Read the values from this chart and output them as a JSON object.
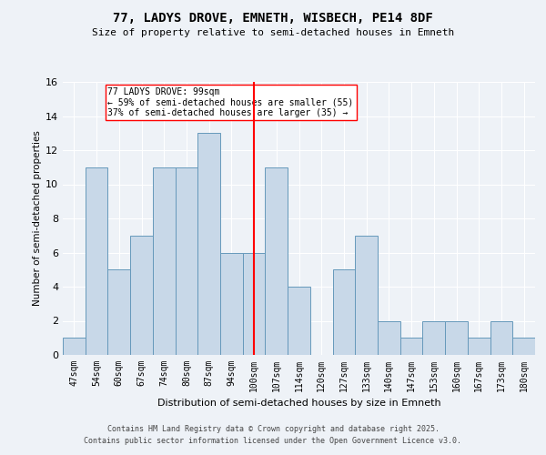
{
  "title1": "77, LADYS DROVE, EMNETH, WISBECH, PE14 8DF",
  "title2": "Size of property relative to semi-detached houses in Emneth",
  "xlabel": "Distribution of semi-detached houses by size in Emneth",
  "ylabel": "Number of semi-detached properties",
  "categories": [
    "47sqm",
    "54sqm",
    "60sqm",
    "67sqm",
    "74sqm",
    "80sqm",
    "87sqm",
    "94sqm",
    "100sqm",
    "107sqm",
    "114sqm",
    "120sqm",
    "127sqm",
    "133sqm",
    "140sqm",
    "147sqm",
    "153sqm",
    "160sqm",
    "167sqm",
    "173sqm",
    "180sqm"
  ],
  "values": [
    1,
    11,
    5,
    7,
    11,
    11,
    13,
    6,
    6,
    11,
    4,
    0,
    5,
    7,
    2,
    1,
    2,
    2,
    1,
    2,
    1
  ],
  "bar_color": "#c8d8e8",
  "bar_edge_color": "#6699bb",
  "annotation_text": "77 LADYS DROVE: 99sqm\n← 59% of semi-detached houses are smaller (55)\n37% of semi-detached houses are larger (35) →",
  "ylim": [
    0,
    16
  ],
  "yticks": [
    0,
    2,
    4,
    6,
    8,
    10,
    12,
    14,
    16
  ],
  "background_color": "#eef2f7",
  "footer1": "Contains HM Land Registry data © Crown copyright and database right 2025.",
  "footer2": "Contains public sector information licensed under the Open Government Licence v3.0."
}
